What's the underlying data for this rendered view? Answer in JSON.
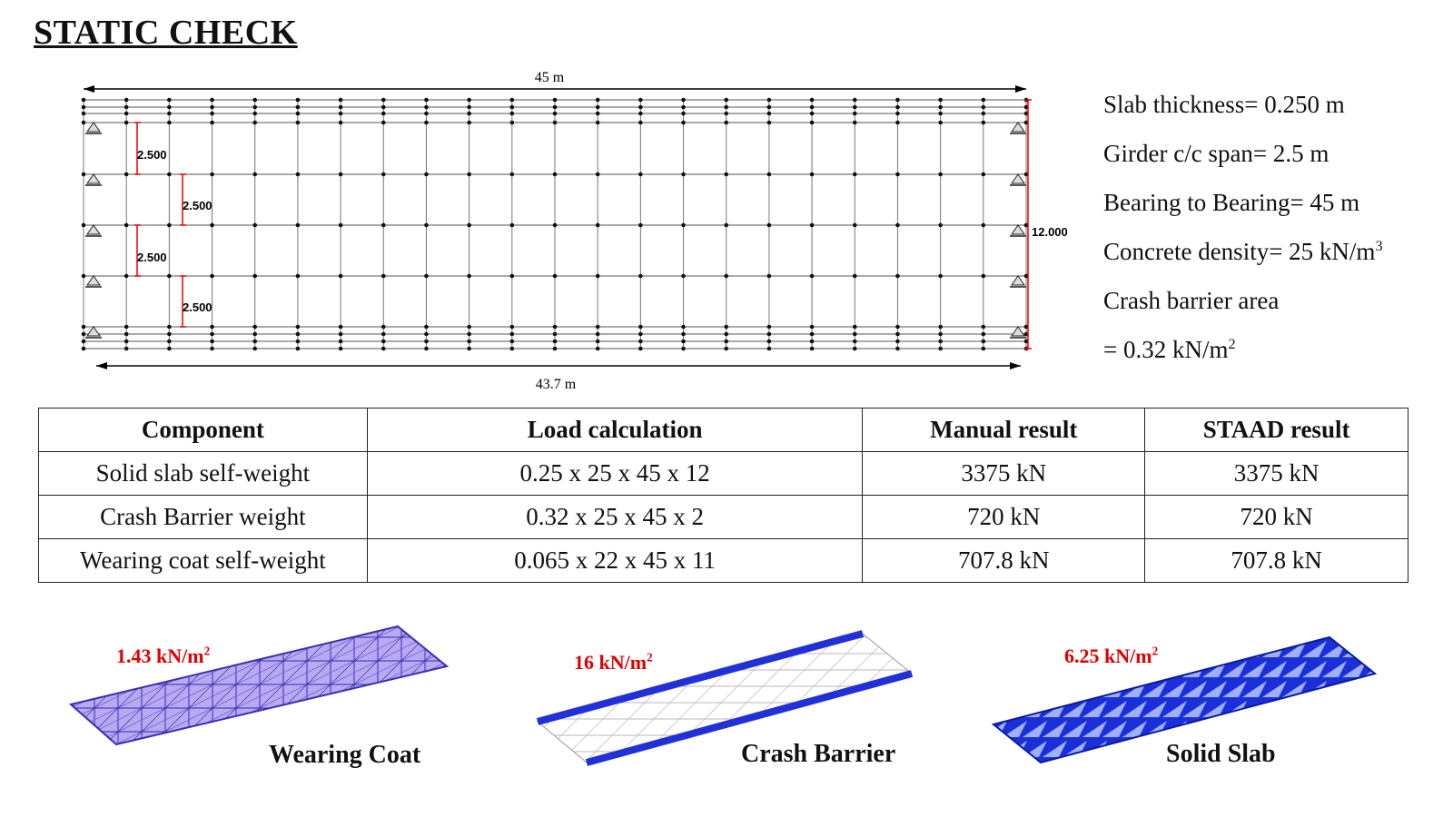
{
  "page_title": "STATIC CHECK",
  "plan": {
    "length_label": "45 m",
    "span_label": "43.7 m",
    "spacing_labels": [
      "2.500",
      "2.500",
      "2.500",
      "2.500"
    ],
    "width_label": "12.000"
  },
  "params": {
    "slab_thickness": "Slab thickness= 0.250 m",
    "girder_span": "Girder c/c span= 2.5 m",
    "bearing": "Bearing to Bearing= 45 m",
    "concrete_density": "Concrete density= 25 kN/m",
    "concrete_density_sup": "3",
    "crash_barrier_area": "Crash barrier area",
    "crash_barrier_value": "= 0.32 kN/m",
    "crash_barrier_value_sup": "2"
  },
  "table": {
    "headers": [
      "Component",
      "Load calculation",
      "Manual result",
      "STAAD result"
    ],
    "rows": [
      [
        "Solid slab self-weight",
        "0.25 x 25 x 45 x 12",
        "3375 kN",
        "3375 kN"
      ],
      [
        "Crash Barrier weight",
        "0.32 x 25 x 45 x 2",
        "720 kN",
        "720 kN"
      ],
      [
        "Wearing coat self-weight",
        "0.065 x 22 x 45 x 11",
        "707.8 kN",
        "707.8 kN"
      ]
    ]
  },
  "models": [
    {
      "label": "Wearing Coat",
      "load": "1.43 kN/m",
      "load_sup": "2"
    },
    {
      "label": "Crash Barrier",
      "load": "16 kN/m",
      "load_sup": "2"
    },
    {
      "label": "Solid Slab",
      "load": "6.25 kN/m",
      "load_sup": "2"
    }
  ],
  "colors": {
    "dimension_red": "#e00000",
    "wearing_coat": "#8a7fe0",
    "crash_barrier": "#2230d8",
    "solid_slab": "#1a2fd8"
  }
}
